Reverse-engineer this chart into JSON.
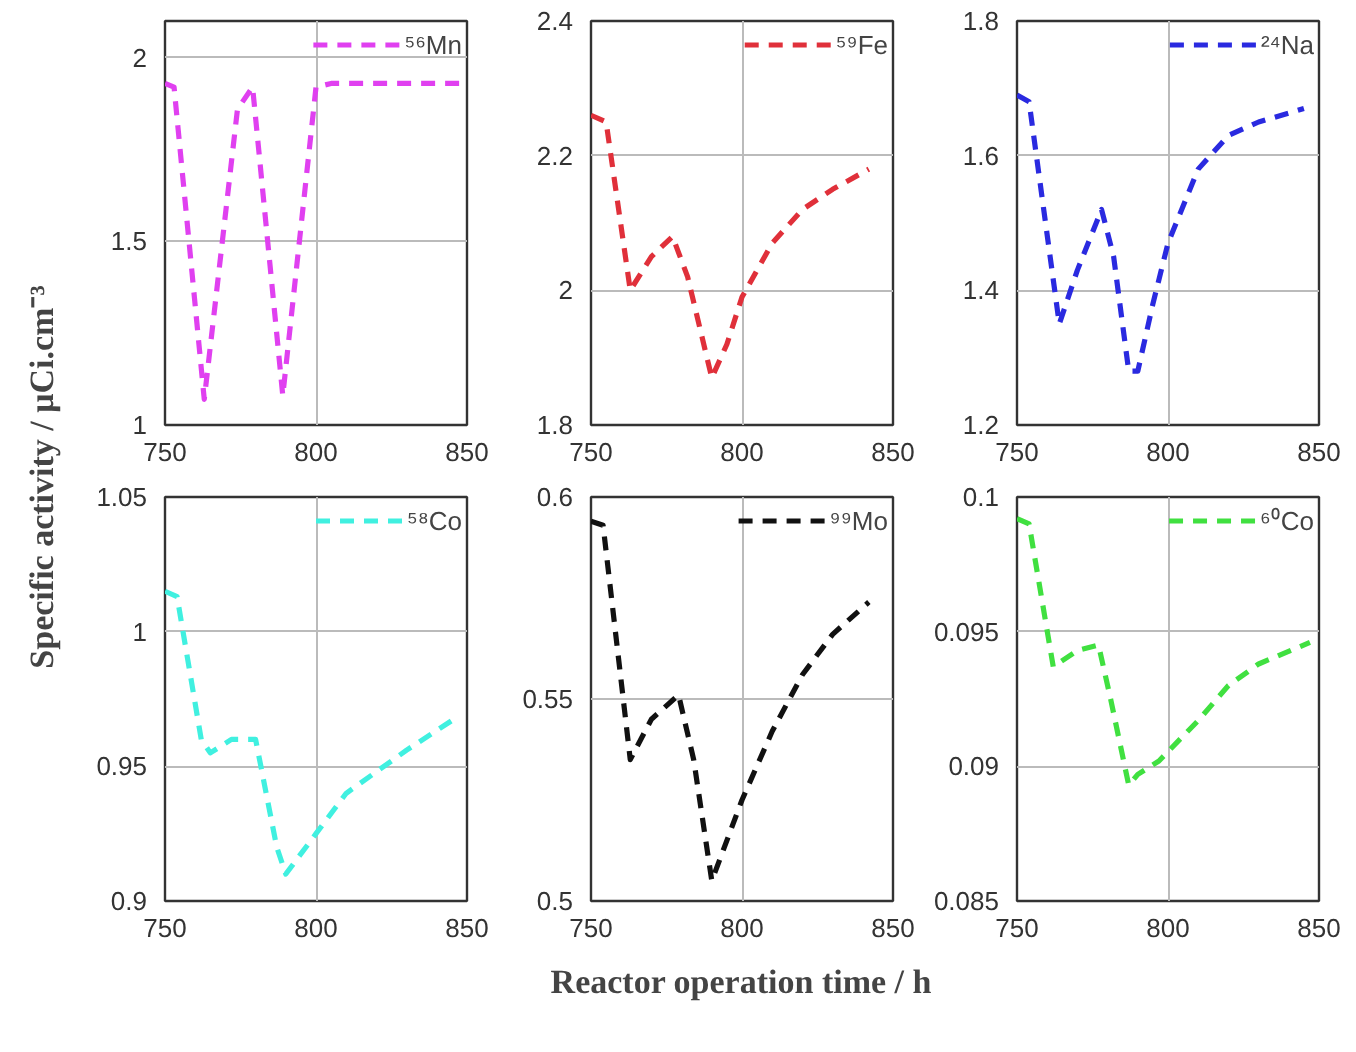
{
  "chart_data": [
    {
      "type": "line",
      "xlabel": "Reactor operation time / h",
      "ylabel": "Specific activity / μCi.cm⁻³",
      "x": [
        750,
        753,
        763,
        774,
        779,
        789,
        800,
        805,
        850
      ],
      "series": [
        {
          "name": "⁵⁶Mn",
          "color": "#e040f0",
          "values": [
            1.93,
            1.92,
            1.07,
            1.86,
            1.92,
            1.08,
            1.92,
            1.93,
            1.93
          ]
        }
      ],
      "xlim": [
        750,
        850
      ],
      "xticks": [
        750,
        800,
        850
      ],
      "ylim": [
        1,
        2.1
      ],
      "yticks": [
        1,
        1.5,
        2
      ],
      "grid": true,
      "legend": "top right",
      "line_style": "dashed"
    },
    {
      "type": "line",
      "x": [
        750,
        755,
        763,
        770,
        777,
        782,
        790,
        795,
        800,
        810,
        820,
        830,
        842
      ],
      "series": [
        {
          "name": "⁵⁹Fe",
          "color": "#e0303a",
          "values": [
            2.26,
            2.25,
            2.0,
            2.05,
            2.08,
            2.02,
            1.87,
            1.92,
            1.99,
            2.07,
            2.12,
            2.15,
            2.18
          ]
        }
      ],
      "xlim": [
        750,
        850
      ],
      "xticks": [
        750,
        800,
        850
      ],
      "ylim": [
        1.8,
        2.4
      ],
      "yticks": [
        1.8,
        2,
        2.2,
        2.4
      ],
      "grid": true,
      "legend": "top right",
      "line_style": "dashed"
    },
    {
      "type": "line",
      "x": [
        750,
        754,
        764,
        770,
        778,
        782,
        787,
        790,
        795,
        800,
        810,
        820,
        830,
        845
      ],
      "series": [
        {
          "name": "²⁴Na",
          "color": "#2a2ae0",
          "values": [
            1.69,
            1.68,
            1.35,
            1.43,
            1.52,
            1.45,
            1.28,
            1.28,
            1.38,
            1.47,
            1.58,
            1.63,
            1.65,
            1.67
          ]
        }
      ],
      "xlim": [
        750,
        850
      ],
      "xticks": [
        750,
        800,
        850
      ],
      "ylim": [
        1.2,
        1.8
      ],
      "yticks": [
        1.2,
        1.4,
        1.6,
        1.8
      ],
      "grid": true,
      "legend": "top right",
      "line_style": "dashed"
    },
    {
      "type": "line",
      "x": [
        750,
        754,
        762,
        765,
        772,
        780,
        787,
        790,
        800,
        810,
        820,
        830,
        845
      ],
      "series": [
        {
          "name": "⁵⁸Co",
          "color": "#40f0e0",
          "values": [
            1.015,
            1.013,
            0.96,
            0.955,
            0.96,
            0.96,
            0.92,
            0.91,
            0.925,
            0.94,
            0.948,
            0.956,
            0.967
          ]
        }
      ],
      "xlim": [
        750,
        850
      ],
      "xticks": [
        750,
        800,
        850
      ],
      "ylim": [
        0.9,
        1.05
      ],
      "yticks": [
        0.9,
        0.95,
        1,
        1.05
      ],
      "grid": true,
      "legend": "top right",
      "line_style": "dashed"
    },
    {
      "type": "line",
      "x": [
        750,
        754,
        763,
        770,
        779,
        784,
        790,
        800,
        810,
        820,
        830,
        842
      ],
      "series": [
        {
          "name": "⁹⁹Mo",
          "color": "#111111",
          "values": [
            0.594,
            0.593,
            0.535,
            0.545,
            0.551,
            0.535,
            0.505,
            0.525,
            0.542,
            0.556,
            0.566,
            0.574
          ]
        }
      ],
      "xlim": [
        750,
        850
      ],
      "xticks": [
        750,
        800,
        850
      ],
      "ylim": [
        0.5,
        0.6
      ],
      "yticks": [
        0.5,
        0.55,
        0.6
      ],
      "grid": true,
      "legend": "top right",
      "line_style": "dashed"
    },
    {
      "type": "line",
      "x": [
        750,
        754,
        762,
        770,
        777,
        781,
        787,
        790,
        797,
        810,
        820,
        830,
        847
      ],
      "series": [
        {
          "name": "⁶⁰Co",
          "color": "#40e040",
          "values": [
            0.0992,
            0.099,
            0.0937,
            0.0943,
            0.0945,
            0.0925,
            0.0893,
            0.0897,
            0.0902,
            0.0917,
            0.093,
            0.0938,
            0.0946
          ]
        }
      ],
      "xlim": [
        750,
        850
      ],
      "xticks": [
        750,
        800,
        850
      ],
      "ylim": [
        0.085,
        0.1
      ],
      "yticks": [
        0.085,
        0.09,
        0.095,
        0.1
      ],
      "grid": true,
      "legend": "top right",
      "line_style": "dashed"
    }
  ]
}
